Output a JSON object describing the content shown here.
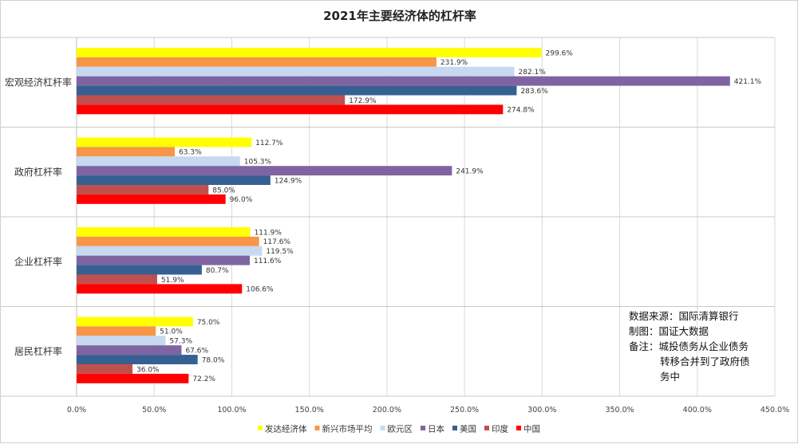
{
  "chart_data": {
    "type": "bar",
    "orientation": "horizontal",
    "title": "2021年主要经济体的杠杆率",
    "categories": [
      "宏观经济杠杆率",
      "政府杠杆率",
      "企业杠杆率",
      "居民杠杆率"
    ],
    "series": [
      {
        "name": "发达经济体",
        "color": "#ffff00",
        "values": [
          299.6,
          112.7,
          111.9,
          75.0
        ]
      },
      {
        "name": "新兴市场平均",
        "color": "#f79646",
        "values": [
          231.9,
          63.3,
          117.6,
          51.0
        ]
      },
      {
        "name": "欧元区",
        "color": "#c6d9f1",
        "values": [
          282.1,
          105.3,
          119.5,
          57.3
        ]
      },
      {
        "name": "日本",
        "color": "#8064a2",
        "values": [
          421.1,
          241.9,
          111.6,
          67.6
        ]
      },
      {
        "name": "美国",
        "color": "#366092",
        "values": [
          283.6,
          124.9,
          80.7,
          78.0
        ]
      },
      {
        "name": "印度",
        "color": "#c0504d",
        "values": [
          172.9,
          85.0,
          51.9,
          36.0
        ]
      },
      {
        "name": "中国",
        "color": "#ff0000",
        "values": [
          274.8,
          96.0,
          106.6,
          72.2
        ]
      }
    ],
    "xlim": [
      0,
      450
    ],
    "xticks": [
      "0.0%",
      "50.0%",
      "100.0%",
      "150.0%",
      "200.0%",
      "250.0%",
      "300.0%",
      "350.0%",
      "400.0%",
      "450.0%"
    ],
    "value_suffix": "%",
    "grid": true,
    "legend_position": "bottom"
  },
  "note": {
    "lines": [
      "数据来源：国际清算银行",
      "制图：国证大数据",
      "备注：城投债务从企业债务",
      "转移合并到了政府债",
      "务中"
    ]
  }
}
